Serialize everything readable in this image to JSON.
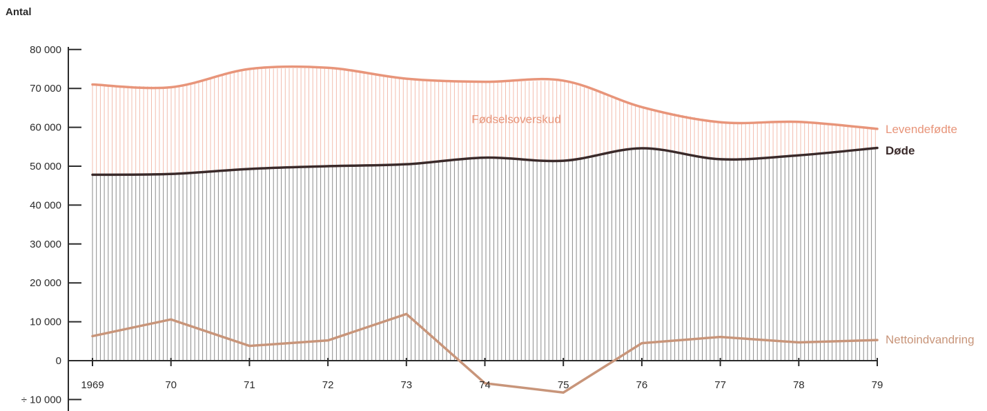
{
  "chart_data": {
    "type": "line",
    "ylabel": "Antal",
    "x": [
      "1969",
      "70",
      "71",
      "72",
      "73",
      "74",
      "75",
      "76",
      "77",
      "78",
      "79"
    ],
    "ylim": [
      -12000,
      80000
    ],
    "yticks": [
      {
        "value": 80000,
        "label": "80 000"
      },
      {
        "value": 70000,
        "label": "70 000"
      },
      {
        "value": 60000,
        "label": "60 000"
      },
      {
        "value": 50000,
        "label": "50 000"
      },
      {
        "value": 40000,
        "label": "40 000"
      },
      {
        "value": 30000,
        "label": "30 000"
      },
      {
        "value": 20000,
        "label": "20 000"
      },
      {
        "value": 10000,
        "label": "10 000"
      },
      {
        "value": 0,
        "label": "0"
      },
      {
        "value": -10000,
        "label": "÷ 10 000"
      }
    ],
    "series": [
      {
        "name": "Levendefødte",
        "color": "#e8957a",
        "values": [
          71000,
          70300,
          75000,
          75300,
          72500,
          71700,
          72000,
          65200,
          61300,
          61400,
          59600
        ]
      },
      {
        "name": "Døde",
        "color": "#3a2a2a",
        "values": [
          47800,
          48000,
          49300,
          50000,
          50500,
          52200,
          51400,
          54600,
          51800,
          52800,
          54700
        ]
      },
      {
        "name": "Nettoindvandring",
        "color": "#c8957a",
        "values": [
          6300,
          10600,
          3800,
          5200,
          12000,
          -5800,
          -8200,
          4500,
          6100,
          4700,
          5300
        ]
      }
    ],
    "annotations": [
      {
        "text": "Fødselsoverskud",
        "x": 5.4,
        "y": 62000,
        "color": "#e8957a"
      }
    ],
    "fill": {
      "between": [
        "Levendefødte",
        "Døde"
      ],
      "style": "vertical-hatch"
    },
    "fill_lower": {
      "between": [
        "Døde",
        0
      ],
      "style": "vertical-hatch"
    }
  }
}
